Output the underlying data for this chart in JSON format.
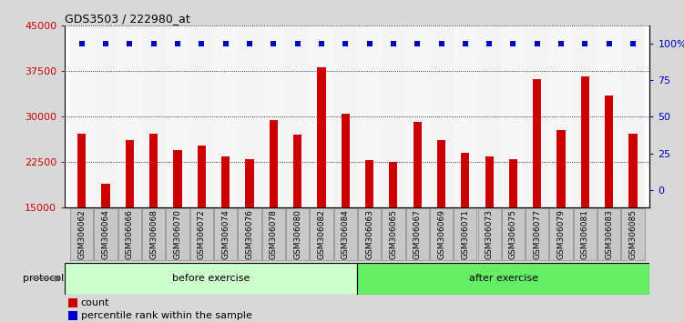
{
  "title": "GDS3503 / 222980_at",
  "categories": [
    "GSM306062",
    "GSM306064",
    "GSM306066",
    "GSM306068",
    "GSM306070",
    "GSM306072",
    "GSM306074",
    "GSM306076",
    "GSM306078",
    "GSM306080",
    "GSM306082",
    "GSM306084",
    "GSM306063",
    "GSM306065",
    "GSM306067",
    "GSM306069",
    "GSM306071",
    "GSM306073",
    "GSM306075",
    "GSM306077",
    "GSM306079",
    "GSM306081",
    "GSM306083",
    "GSM306085"
  ],
  "counts": [
    27200,
    19000,
    26200,
    27200,
    24500,
    25200,
    23500,
    23000,
    29500,
    27000,
    38200,
    30500,
    22800,
    22500,
    29200,
    26200,
    24000,
    23500,
    23000,
    36200,
    27800,
    36700,
    33500,
    27200
  ],
  "percentile_ranks": [
    100,
    100,
    100,
    100,
    100,
    100,
    100,
    100,
    100,
    100,
    100,
    100,
    100,
    100,
    100,
    100,
    100,
    100,
    100,
    100,
    100,
    100,
    100,
    100
  ],
  "bar_color": "#cc0000",
  "dot_color": "#0000cc",
  "ylim": [
    15000,
    45000
  ],
  "yticks_left": [
    15000,
    22500,
    30000,
    37500,
    45000
  ],
  "yticks_right": [
    0,
    25,
    50,
    75,
    100
  ],
  "protocol_groups": [
    {
      "label": "before exercise",
      "start": 0,
      "end": 12,
      "color": "#ccffcc"
    },
    {
      "label": "after exercise",
      "start": 12,
      "end": 24,
      "color": "#66ee66"
    }
  ],
  "protocol_label": "protocol",
  "legend_count_label": "count",
  "legend_percentile_label": "percentile rank within the sample",
  "background_color": "#d8d8d8",
  "plot_bg_color": "#ffffff",
  "tick_bg_even": "#cccccc",
  "tick_bg_odd": "#bbbbbb",
  "grid_color": "#000000",
  "grid_linestyle": "dotted"
}
